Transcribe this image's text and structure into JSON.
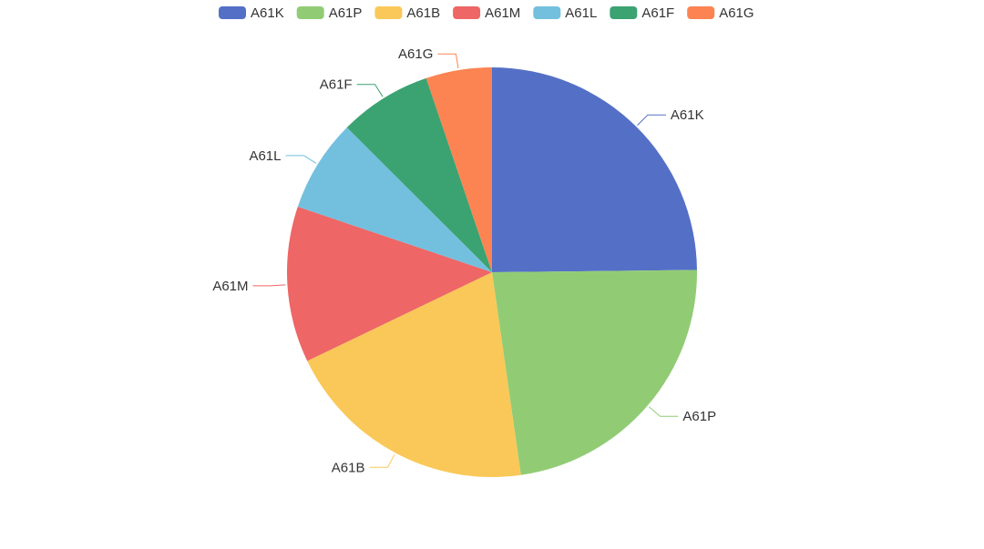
{
  "chart_data": {
    "type": "pie",
    "legend_position": "top-center",
    "categories": [
      "A61K",
      "A61P",
      "A61B",
      "A61M",
      "A61L",
      "A61F",
      "A61G"
    ],
    "values": [
      24.8,
      22.9,
      20.1,
      12.3,
      7.3,
      7.3,
      5.2
    ],
    "colors": [
      "#5470c6",
      "#91cc75",
      "#fac858",
      "#ee6666",
      "#73c0de",
      "#3ba272",
      "#fc8452"
    ]
  }
}
